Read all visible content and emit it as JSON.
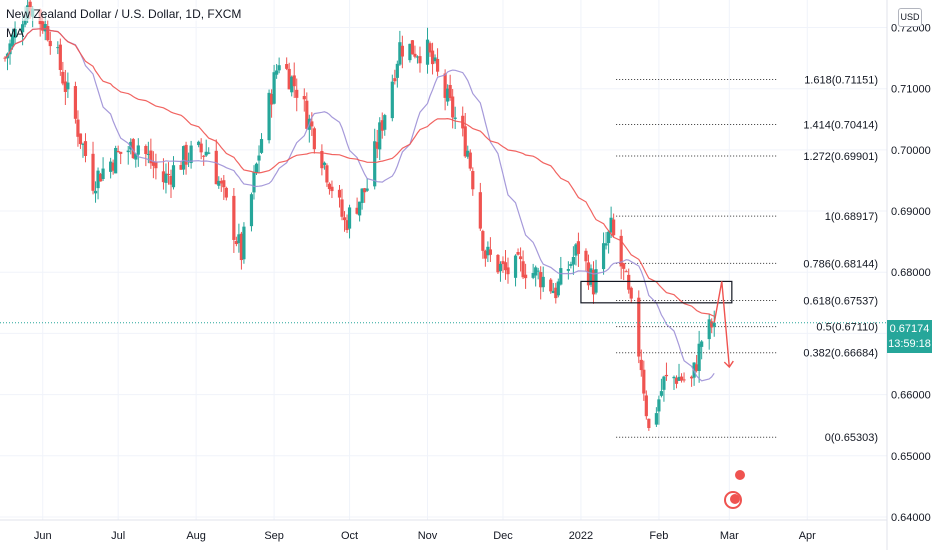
{
  "header": {
    "symbol_title": "New Zealand Dollar / U.S. Dollar, 1D, FXCM",
    "indicator_label": "MA"
  },
  "currency_button": "USD",
  "last_price": {
    "value": "0.67174",
    "countdown": "13:59:18"
  },
  "colors": {
    "up": "#26a69a",
    "down": "#ef5350",
    "ma_fast": "#9c8fd6",
    "ma_slow": "#ef5350",
    "fib_line": "#333333",
    "price_line": "#26a69a",
    "grid": "#f0f3fa"
  },
  "chart_data": {
    "type": "candlestick",
    "y_axis": {
      "range": [
        0.6395,
        0.7245
      ],
      "ticks": [
        0.72,
        0.71,
        0.7,
        0.69,
        0.68,
        0.67,
        0.66,
        0.65,
        0.64
      ],
      "tick_labels": [
        "0.72000",
        "0.71000",
        "0.70000",
        "0.69000",
        "0.68000",
        "0.67000",
        "0.66000",
        "0.65000",
        "0.64000"
      ]
    },
    "x_axis": {
      "labels": [
        "Jun",
        "Jul",
        "Aug",
        "Sep",
        "Oct",
        "Nov",
        "Dec",
        "2022",
        "Feb",
        "Mar",
        "Apr"
      ]
    },
    "price_waypoints": [
      [
        "2021-05-17",
        0.715
      ],
      [
        "2021-05-26",
        0.724
      ],
      [
        "2021-06-04",
        0.719
      ],
      [
        "2021-06-16",
        0.702
      ],
      [
        "2021-06-21",
        0.695
      ],
      [
        "2021-06-30",
        0.699
      ],
      [
        "2021-07-09",
        0.701
      ],
      [
        "2021-07-19",
        0.695
      ],
      [
        "2021-07-28",
        0.699
      ],
      [
        "2021-08-06",
        0.7
      ],
      [
        "2021-08-19",
        0.683
      ],
      [
        "2021-08-27",
        0.702
      ],
      [
        "2021-09-03",
        0.715
      ],
      [
        "2021-09-10",
        0.71
      ],
      [
        "2021-09-20",
        0.699
      ],
      [
        "2021-09-29",
        0.688
      ],
      [
        "2021-10-08",
        0.694
      ],
      [
        "2021-10-21",
        0.717
      ],
      [
        "2021-11-01",
        0.716
      ],
      [
        "2021-11-08",
        0.709
      ],
      [
        "2021-11-17",
        0.7
      ],
      [
        "2021-11-24",
        0.683
      ],
      [
        "2021-12-02",
        0.68
      ],
      [
        "2021-12-09",
        0.681
      ],
      [
        "2021-12-17",
        0.679
      ],
      [
        "2021-12-22",
        0.677
      ],
      [
        "2021-12-31",
        0.684
      ],
      [
        "2022-01-06",
        0.678
      ],
      [
        "2022-01-13",
        0.687
      ],
      [
        "2022-01-19",
        0.678
      ],
      [
        "2022-01-25",
        0.665
      ],
      [
        "2022-01-28",
        0.654
      ],
      [
        "2022-02-03",
        0.662
      ],
      [
        "2022-02-08",
        0.663
      ],
      [
        "2022-02-14",
        0.662
      ],
      [
        "2022-02-18",
        0.669
      ],
      [
        "2022-02-23",
        0.6717
      ]
    ],
    "current_price": 0.67174,
    "series": [
      {
        "name": "MA",
        "period": 20
      },
      {
        "name": "MA",
        "period": 50
      }
    ],
    "fibonacci": {
      "start_date": "2022-01-15",
      "end_date": "2022-02-23",
      "levels": [
        {
          "ratio": 1.618,
          "price": 0.71151,
          "label": "1.618(0.71151)"
        },
        {
          "ratio": 1.414,
          "price": 0.70414,
          "label": "1.414(0.70414)"
        },
        {
          "ratio": 1.272,
          "price": 0.69901,
          "label": "1.272(0.69901)"
        },
        {
          "ratio": 1,
          "price": 0.68917,
          "label": "1(0.68917)"
        },
        {
          "ratio": 0.786,
          "price": 0.68144,
          "label": "0.786(0.68144)"
        },
        {
          "ratio": 0.618,
          "price": 0.67537,
          "label": "0.618(0.67537)"
        },
        {
          "ratio": 0.5,
          "price": 0.6711,
          "label": "0.5(0.67110)"
        },
        {
          "ratio": 0.382,
          "price": 0.66684,
          "label": "0.382(0.66684)"
        },
        {
          "ratio": 0,
          "price": 0.65303,
          "label": "0(0.65303)"
        }
      ]
    },
    "annotations": {
      "resistance_box": {
        "start_date": "2022-01-01",
        "end_date": "2022-03-02",
        "low": 0.675,
        "high": 0.6785
      },
      "projection_path": [
        [
          "2022-02-23",
          0.6717
        ],
        [
          "2022-02-26",
          0.6785
        ],
        [
          "2022-03-01",
          0.6645
        ]
      ]
    }
  }
}
